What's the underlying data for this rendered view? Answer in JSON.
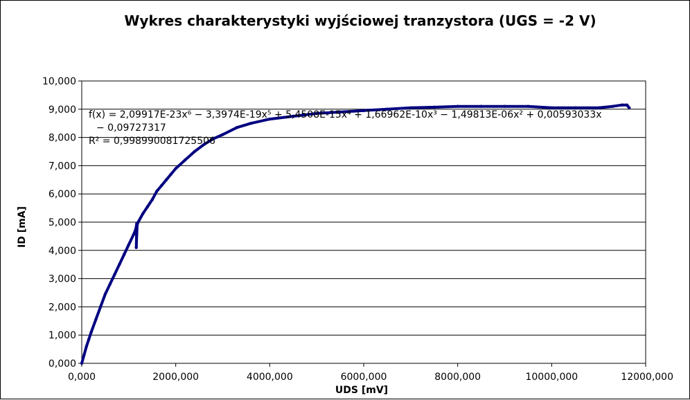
{
  "chart_data": {
    "type": "scatter",
    "title": "Wykres charakterystyki wyjściowej tranzystora (UGS = -2 V)",
    "xlabel": "UDS [mV]",
    "ylabel": "ID [mA]",
    "xlim": [
      0,
      12000
    ],
    "ylim": [
      0,
      10
    ],
    "x_ticks": [
      "0,000",
      "2000,000",
      "4000,000",
      "6000,000",
      "8000,000",
      "10000,000",
      "12000,000"
    ],
    "y_ticks": [
      "0,000",
      "1,000",
      "2,000",
      "3,000",
      "4,000",
      "5,000",
      "6,000",
      "7,000",
      "8,000",
      "9,000",
      "10,000"
    ],
    "grid": "horizontal",
    "series_color": "#000080",
    "series": [
      {
        "values": [
          [
            0,
            0.0
          ],
          [
            50,
            0.3
          ],
          [
            100,
            0.6
          ],
          [
            150,
            0.85
          ],
          [
            200,
            1.1
          ],
          [
            300,
            1.55
          ],
          [
            400,
            2.0
          ],
          [
            500,
            2.45
          ],
          [
            600,
            2.8
          ],
          [
            700,
            3.15
          ],
          [
            800,
            3.5
          ],
          [
            900,
            3.85
          ],
          [
            1000,
            4.2
          ],
          [
            1100,
            4.55
          ],
          [
            1150,
            4.75
          ],
          [
            1170,
            4.95
          ],
          [
            1160,
            4.1
          ],
          [
            1180,
            4.9
          ],
          [
            1200,
            5.0
          ],
          [
            1300,
            5.3
          ],
          [
            1400,
            5.55
          ],
          [
            1500,
            5.8
          ],
          [
            1600,
            6.1
          ],
          [
            1700,
            6.3
          ],
          [
            1800,
            6.5
          ],
          [
            1900,
            6.7
          ],
          [
            2000,
            6.9
          ],
          [
            2200,
            7.2
          ],
          [
            2400,
            7.5
          ],
          [
            2600,
            7.75
          ],
          [
            2800,
            7.95
          ],
          [
            3000,
            8.1
          ],
          [
            3300,
            8.35
          ],
          [
            3600,
            8.5
          ],
          [
            4000,
            8.65
          ],
          [
            4500,
            8.75
          ],
          [
            5000,
            8.85
          ],
          [
            5500,
            8.9
          ],
          [
            6000,
            8.95
          ],
          [
            6500,
            9.0
          ],
          [
            7000,
            9.05
          ],
          [
            7500,
            9.07
          ],
          [
            8000,
            9.1
          ],
          [
            8500,
            9.1
          ],
          [
            9000,
            9.1
          ],
          [
            9500,
            9.1
          ],
          [
            10000,
            9.05
          ],
          [
            10500,
            9.05
          ],
          [
            11000,
            9.05
          ],
          [
            11300,
            9.1
          ],
          [
            11500,
            9.15
          ],
          [
            11600,
            9.15
          ],
          [
            11650,
            9.05
          ]
        ]
      }
    ],
    "trendline": {
      "equation": "f(x) = 2,09917E-23x⁶ − 3,3974E-19x⁵ + 5,4508E-15x⁴ + 1,66962E-10x³ − 1,49813E-06x² + 0,00593033x",
      "equation_cont": "− 0,09727317",
      "r2": "R² = 0,998990081725506"
    }
  }
}
